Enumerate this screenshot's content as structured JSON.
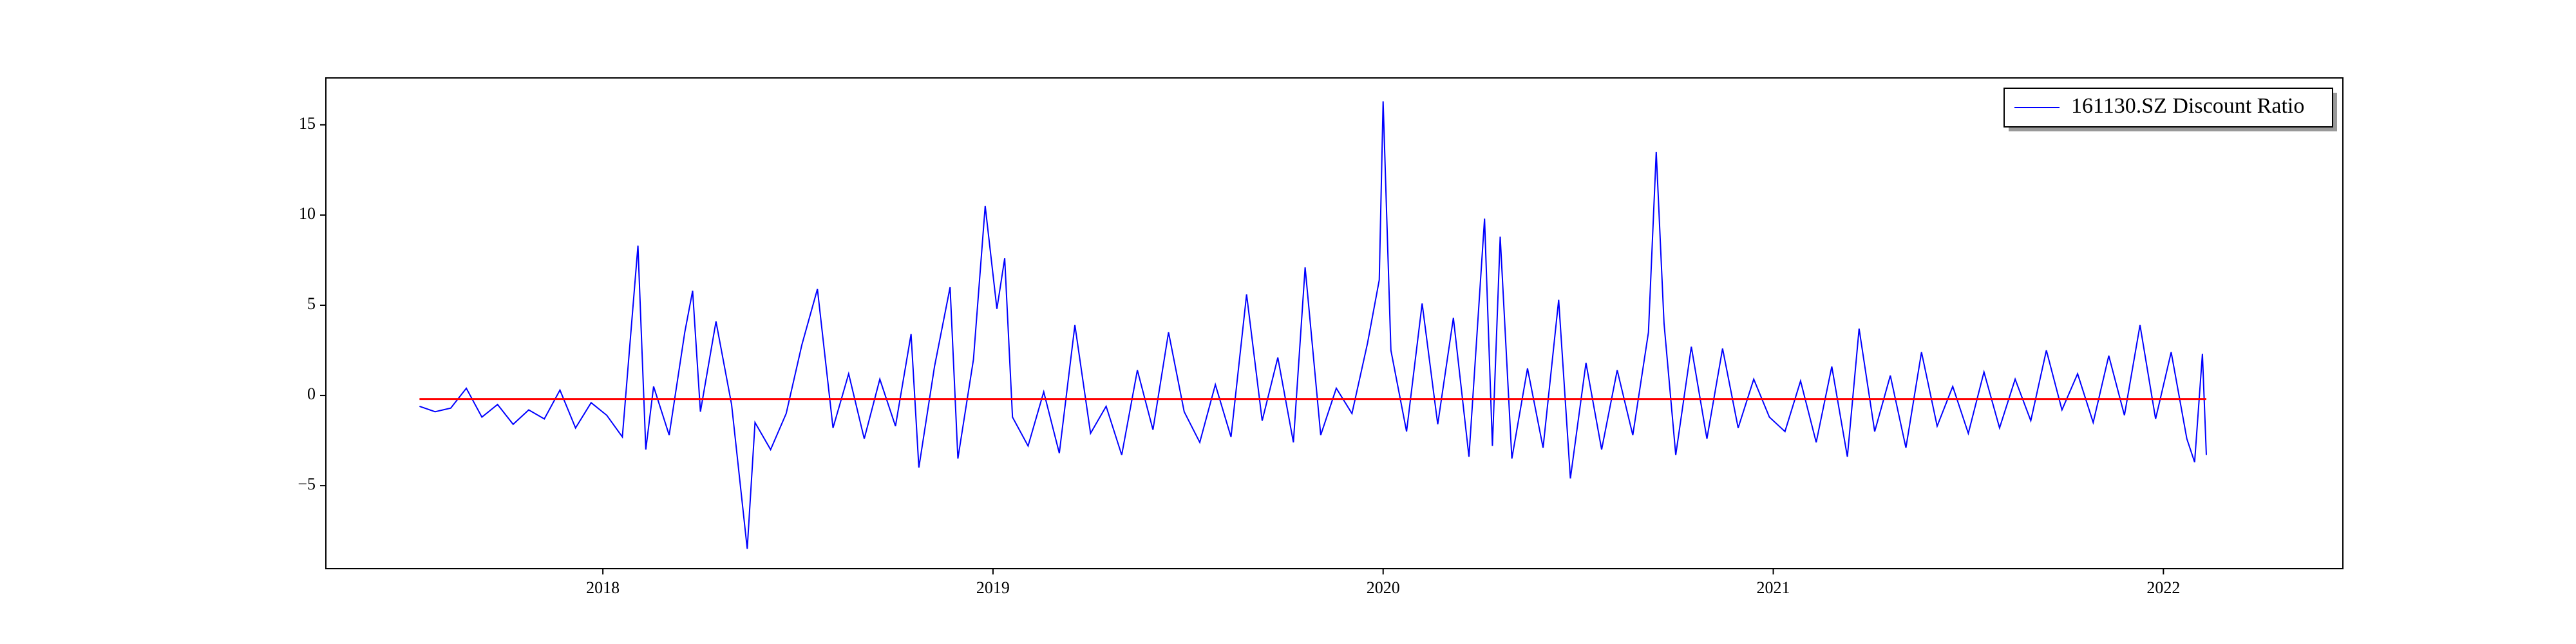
{
  "chart_data": {
    "type": "line",
    "series": [
      {
        "name": "161130.SZ Discount Ratio",
        "color": "#0000ff",
        "x": [
          2017.53,
          2017.57,
          2017.61,
          2017.65,
          2017.69,
          2017.73,
          2017.77,
          2017.81,
          2017.85,
          2017.89,
          2017.93,
          2017.97,
          2018.01,
          2018.05,
          2018.09,
          2018.11,
          2018.13,
          2018.17,
          2018.21,
          2018.23,
          2018.25,
          2018.29,
          2018.33,
          2018.37,
          2018.39,
          2018.43,
          2018.47,
          2018.51,
          2018.55,
          2018.59,
          2018.63,
          2018.67,
          2018.71,
          2018.75,
          2018.79,
          2018.81,
          2018.85,
          2018.89,
          2018.91,
          2018.95,
          2018.98,
          2019.01,
          2019.03,
          2019.05,
          2019.09,
          2019.13,
          2019.17,
          2019.21,
          2019.25,
          2019.29,
          2019.33,
          2019.37,
          2019.41,
          2019.45,
          2019.49,
          2019.53,
          2019.57,
          2019.61,
          2019.65,
          2019.69,
          2019.73,
          2019.77,
          2019.8,
          2019.84,
          2019.88,
          2019.92,
          2019.96,
          2019.99,
          2020.0,
          2020.02,
          2020.06,
          2020.1,
          2020.14,
          2020.18,
          2020.22,
          2020.26,
          2020.28,
          2020.3,
          2020.33,
          2020.37,
          2020.41,
          2020.45,
          2020.48,
          2020.52,
          2020.56,
          2020.6,
          2020.64,
          2020.68,
          2020.7,
          2020.72,
          2020.75,
          2020.79,
          2020.83,
          2020.87,
          2020.91,
          2020.95,
          2020.99,
          2021.03,
          2021.07,
          2021.11,
          2021.15,
          2021.19,
          2021.22,
          2021.26,
          2021.3,
          2021.34,
          2021.38,
          2021.42,
          2021.46,
          2021.5,
          2021.54,
          2021.58,
          2021.62,
          2021.66,
          2021.7,
          2021.74,
          2021.78,
          2021.82,
          2021.86,
          2021.9,
          2021.94,
          2021.98,
          2022.02,
          2022.06,
          2022.08,
          2022.1,
          2022.11
        ],
        "values": [
          -0.6,
          -0.9,
          -0.7,
          0.4,
          -1.2,
          -0.5,
          -1.6,
          -0.8,
          -1.3,
          0.3,
          -1.8,
          -0.4,
          -1.1,
          -2.3,
          8.3,
          -3.0,
          0.5,
          -2.2,
          3.5,
          5.8,
          -0.9,
          4.1,
          -0.5,
          -8.5,
          -1.5,
          -3.0,
          -1.0,
          2.8,
          5.9,
          -1.8,
          1.2,
          -2.4,
          0.9,
          -1.7,
          3.4,
          -4.0,
          1.6,
          6.0,
          -3.5,
          2.0,
          10.5,
          4.8,
          7.6,
          -1.2,
          -2.8,
          0.2,
          -3.2,
          3.9,
          -2.1,
          -0.6,
          -3.3,
          1.4,
          -1.9,
          3.5,
          -0.9,
          -2.6,
          0.6,
          -2.3,
          5.6,
          -1.4,
          2.1,
          -2.6,
          7.1,
          -2.2,
          0.4,
          -1.0,
          2.9,
          6.4,
          16.3,
          2.5,
          -2.0,
          5.1,
          -1.6,
          4.3,
          -3.4,
          9.8,
          -2.8,
          8.8,
          -3.5,
          1.5,
          -2.9,
          5.3,
          -4.6,
          1.8,
          -3.0,
          1.4,
          -2.2,
          3.5,
          13.5,
          4.0,
          -3.3,
          2.7,
          -2.4,
          2.6,
          -1.8,
          0.9,
          -1.2,
          -2.0,
          0.8,
          -2.6,
          1.6,
          -3.4,
          3.7,
          -2.0,
          1.1,
          -2.9,
          2.4,
          -1.7,
          0.5,
          -2.1,
          1.3,
          -1.8,
          0.9,
          -1.4,
          2.5,
          -0.8,
          1.2,
          -1.5,
          2.2,
          -1.1,
          3.9,
          -1.3,
          2.4,
          -2.4,
          -3.7,
          2.3,
          -3.3
        ]
      }
    ],
    "hline": {
      "value": -0.2,
      "color": "#ff0000"
    },
    "xlim": [
      2017.29,
      2022.46
    ],
    "xticks": [
      2018,
      2019,
      2020,
      2021,
      2022
    ],
    "ylim": [
      -9.6,
      17.6
    ],
    "yticks": [
      {
        "value": -5,
        "label": "−5"
      },
      0,
      5,
      10,
      15
    ],
    "legend": "upper right"
  }
}
